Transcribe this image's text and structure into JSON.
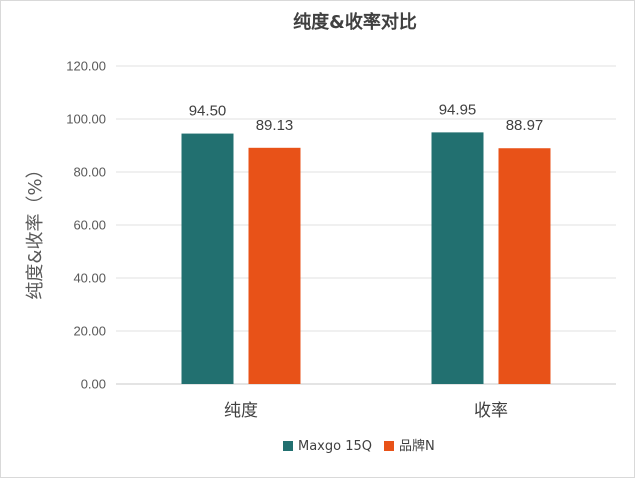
{
  "chart_data": {
    "type": "bar",
    "title": "纯度&收率对比",
    "ylabel": "纯度&收率（%）",
    "xlabel": "",
    "categories": [
      "纯度",
      "收率"
    ],
    "series": [
      {
        "name": "Maxgo 15Q",
        "values": [
          94.5,
          94.95
        ],
        "display": [
          "94.50",
          "94.95"
        ],
        "color": "#227070"
      },
      {
        "name": "品牌N",
        "values": [
          89.13,
          88.97
        ],
        "display": [
          "89.13",
          "88.97"
        ],
        "color": "#e85218"
      }
    ],
    "ylim": [
      0,
      120
    ],
    "yticks": [
      "0.00",
      "20.00",
      "40.00",
      "60.00",
      "80.00",
      "100.00",
      "120.00"
    ],
    "grid": true,
    "legend_position": "bottom"
  }
}
